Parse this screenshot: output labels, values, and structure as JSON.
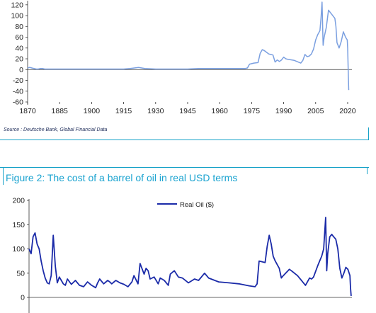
{
  "source_text": "Source : Deutsche Bank, Global Financial Data",
  "figure2_title": "Figure 2: The cost of a barrel of oil in real USD terms",
  "chart_data": [
    {
      "type": "line",
      "x_ticks": [
        1870,
        1885,
        1900,
        1915,
        1930,
        1945,
        1960,
        1975,
        1990,
        2005,
        2020
      ],
      "y_ticks": [
        -60,
        -40,
        -20,
        0,
        20,
        40,
        60,
        80,
        100,
        120
      ],
      "xlim": [
        1870,
        2022
      ],
      "ylim": [
        -60,
        125
      ],
      "grid": false,
      "color": "#7a9fe0",
      "series": [
        {
          "x": [
            1870,
            1871,
            1872,
            1873,
            1874,
            1875,
            1876,
            1877,
            1878,
            1879,
            1880,
            1885,
            1890,
            1895,
            1900,
            1905,
            1910,
            1915,
            1918,
            1920,
            1922,
            1925,
            1930,
            1935,
            1940,
            1945,
            1950,
            1955,
            1960,
            1965,
            1970,
            1972,
            1973,
            1974,
            1975,
            1976,
            1978,
            1979,
            1980,
            1981,
            1982,
            1983,
            1985,
            1986,
            1987,
            1988,
            1989,
            1990,
            1991,
            1992,
            1995,
            1998,
            1999,
            2000,
            2001,
            2002,
            2003,
            2004,
            2005,
            2006,
            2007,
            2007.5,
            2008,
            2008.5,
            2009,
            2010,
            2011,
            2012,
            2013,
            2014,
            2014.5,
            2015,
            2016,
            2017,
            2018,
            2019,
            2019.8,
            2020,
            2020.3,
            2020.5
          ],
          "values": [
            3,
            4,
            3,
            2,
            1,
            1,
            2,
            2,
            1,
            1,
            1,
            1,
            1,
            1,
            1,
            1,
            1,
            1,
            2,
            3,
            4,
            2,
            1,
            1,
            1,
            1,
            2,
            2,
            2,
            2,
            2,
            2,
            3,
            10,
            11,
            12,
            13,
            30,
            37,
            35,
            32,
            29,
            27,
            14,
            18,
            15,
            18,
            23,
            20,
            19,
            17,
            12,
            17,
            28,
            24,
            25,
            29,
            38,
            55,
            65,
            72,
            95,
            125,
            45,
            60,
            78,
            110,
            105,
            100,
            95,
            80,
            50,
            40,
            52,
            70,
            60,
            55,
            40,
            -10,
            -38
          ]
        }
      ]
    },
    {
      "type": "line",
      "x_ticks": [],
      "y_ticks": [
        0,
        50,
        100,
        150,
        200
      ],
      "xlim": [
        1861,
        2021
      ],
      "ylim": [
        0,
        200
      ],
      "grid": false,
      "legend": "top-center",
      "color": "#1a2aa8",
      "series": [
        {
          "name": "Real Oil ($)",
          "x": [
            1861,
            1862,
            1863,
            1864,
            1865,
            1866,
            1867,
            1868,
            1869,
            1870,
            1871,
            1872,
            1873,
            1874,
            1875,
            1876,
            1877,
            1878,
            1879,
            1880,
            1882,
            1884,
            1886,
            1888,
            1890,
            1892,
            1894,
            1895,
            1896,
            1898,
            1900,
            1901,
            1902,
            1904,
            1906,
            1908,
            1910,
            1912,
            1913,
            1915,
            1916,
            1918,
            1919,
            1920,
            1921,
            1923,
            1925,
            1926,
            1928,
            1930,
            1931,
            1933,
            1935,
            1937,
            1940,
            1943,
            1945,
            1948,
            1950,
            1955,
            1960,
            1965,
            1970,
            1973,
            1974,
            1975,
            1978,
            1979,
            1980,
            1981,
            1982,
            1983,
            1985,
            1986,
            1987,
            1990,
            1991,
            1994,
            1998,
            2000,
            2001,
            2002,
            2004,
            2005,
            2006,
            2007,
            2008,
            2008.5,
            2009,
            2010,
            2011,
            2012,
            2013,
            2014,
            2015,
            2016,
            2017,
            2018,
            2019,
            2020,
            2020.3,
            2020.6
          ],
          "values": [
            100,
            90,
            125,
            133,
            110,
            100,
            75,
            55,
            40,
            30,
            28,
            45,
            128,
            65,
            30,
            42,
            35,
            28,
            25,
            38,
            27,
            35,
            25,
            22,
            32,
            25,
            20,
            30,
            38,
            28,
            35,
            32,
            28,
            35,
            30,
            27,
            22,
            32,
            45,
            28,
            70,
            48,
            60,
            55,
            38,
            42,
            28,
            40,
            35,
            25,
            48,
            55,
            42,
            40,
            30,
            38,
            35,
            50,
            40,
            32,
            30,
            28,
            24,
            22,
            28,
            75,
            72,
            105,
            128,
            110,
            85,
            75,
            60,
            40,
            45,
            58,
            55,
            45,
            25,
            40,
            38,
            42,
            65,
            75,
            85,
            100,
            165,
            55,
            90,
            125,
            130,
            125,
            120,
            100,
            60,
            40,
            50,
            62,
            58,
            45,
            20,
            3
          ]
        }
      ]
    }
  ]
}
